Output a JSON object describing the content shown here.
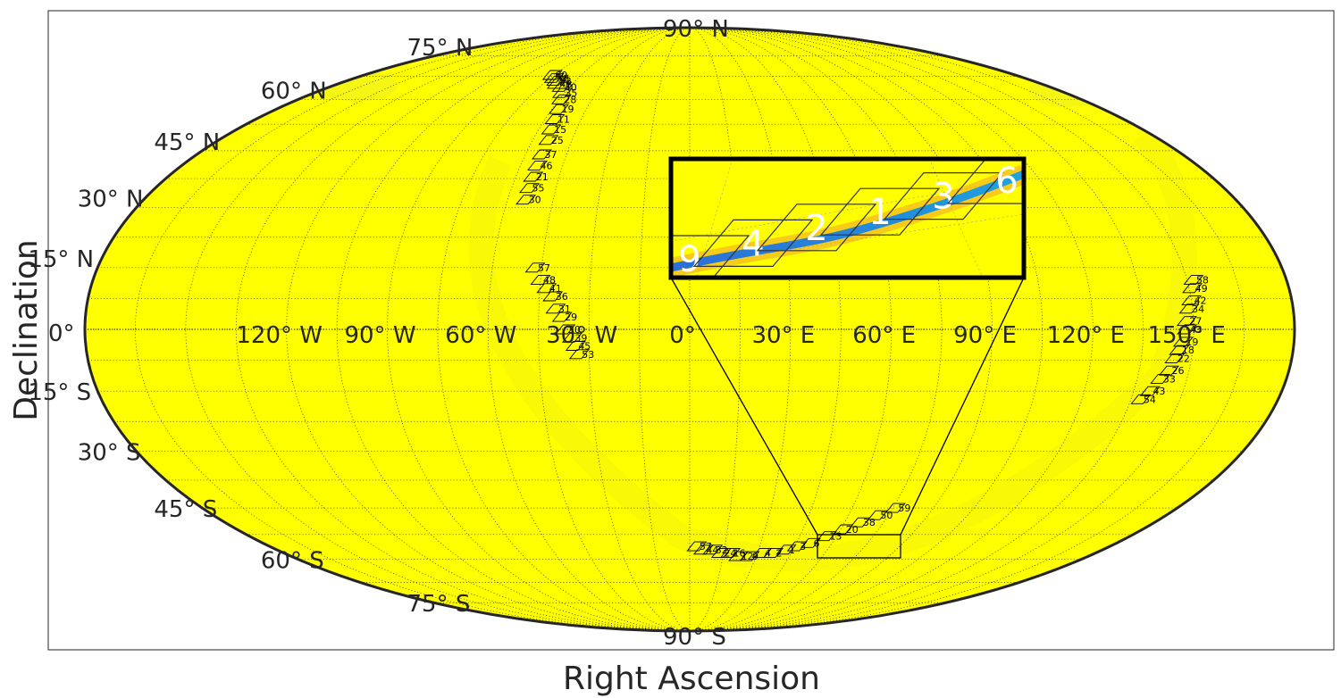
{
  "chart_data": {
    "type": "scatter",
    "projection": "mollweide",
    "title": "",
    "xlabel": "Right Ascension",
    "ylabel": "Declination",
    "grid": true,
    "colors": {
      "background_map": "#ffff00",
      "band": "#f2f20a",
      "tiles": "#000000",
      "track": "#1f7fd0"
    },
    "ra_tick_labels": [
      {
        "ra": -120,
        "label": "120° W"
      },
      {
        "ra": -90,
        "label": "90° W"
      },
      {
        "ra": -60,
        "label": "60° W"
      },
      {
        "ra": -30,
        "label": "30° W"
      },
      {
        "ra": 0,
        "label": "0°"
      },
      {
        "ra": 30,
        "label": "30° E"
      },
      {
        "ra": 60,
        "label": "60° E"
      },
      {
        "ra": 90,
        "label": "90° E"
      },
      {
        "ra": 120,
        "label": "120° E"
      },
      {
        "ra": 150,
        "label": "150° E"
      }
    ],
    "dec_tick_labels": [
      {
        "dec": 90,
        "label": "90° N"
      },
      {
        "dec": 75,
        "label": "75° N"
      },
      {
        "dec": 60,
        "label": "60° N"
      },
      {
        "dec": 45,
        "label": "45° N"
      },
      {
        "dec": 30,
        "label": "30° N"
      },
      {
        "dec": 15,
        "label": "15° N"
      },
      {
        "dec": 0,
        "label": "0°"
      },
      {
        "dec": -15,
        "label": "15° S"
      },
      {
        "dec": -30,
        "label": "30° S"
      },
      {
        "dec": -45,
        "label": "45° S"
      },
      {
        "dec": -60,
        "label": "60° S"
      },
      {
        "dec": -75,
        "label": "75° S"
      },
      {
        "dec": -90,
        "label": "90° S"
      }
    ],
    "tile_groups": [
      {
        "name": "north-arc",
        "tiles": [
          {
            "id": "60",
            "ra": -76,
            "dec": 68
          },
          {
            "id": "58",
            "ra": -73,
            "dec": 67
          },
          {
            "id": "52",
            "ra": -70,
            "dec": 66
          },
          {
            "id": "48",
            "ra": -68,
            "dec": 65
          },
          {
            "id": "40",
            "ra": -64,
            "dec": 64
          },
          {
            "id": "35",
            "ra": -61,
            "dec": 62
          },
          {
            "id": "28",
            "ra": -59,
            "dec": 60
          },
          {
            "id": "19",
            "ra": -57,
            "dec": 57
          },
          {
            "id": "11",
            "ra": -56,
            "dec": 54
          },
          {
            "id": "15",
            "ra": -55,
            "dec": 51
          },
          {
            "id": "25",
            "ra": -54,
            "dec": 48
          },
          {
            "id": "37",
            "ra": -54,
            "dec": 44
          },
          {
            "id": "46",
            "ra": -54,
            "dec": 41
          },
          {
            "id": "21",
            "ra": -54,
            "dec": 38
          },
          {
            "id": "55",
            "ra": -54,
            "dec": 35
          },
          {
            "id": "30",
            "ra": -54,
            "dec": 32
          }
        ]
      },
      {
        "name": "west-arc",
        "tiles": [
          {
            "id": "57",
            "ra": -47,
            "dec": 15
          },
          {
            "id": "48",
            "ra": -45,
            "dec": 12
          },
          {
            "id": "41",
            "ra": -43,
            "dec": 10
          },
          {
            "id": "36",
            "ra": -41,
            "dec": 8
          },
          {
            "id": "31",
            "ra": -40,
            "dec": 5
          },
          {
            "id": "29",
            "ra": -38,
            "dec": 3
          },
          {
            "id": "30",
            "ra": -37,
            "dec": 0
          },
          {
            "id": "39",
            "ra": -35,
            "dec": -2
          },
          {
            "id": "45",
            "ra": -34,
            "dec": -4
          },
          {
            "id": "53",
            "ra": -33,
            "dec": -6
          }
        ]
      },
      {
        "name": "east-arc",
        "tiles": [
          {
            "id": "58",
            "ra": 152,
            "dec": 12
          },
          {
            "id": "49",
            "ra": 151,
            "dec": 10
          },
          {
            "id": "42",
            "ra": 150,
            "dec": 7
          },
          {
            "id": "34",
            "ra": 149,
            "dec": 5
          },
          {
            "id": "27",
            "ra": 148,
            "dec": 2
          },
          {
            "id": "43",
            "ra": 148,
            "dec": 0
          },
          {
            "id": "19",
            "ra": 147,
            "dec": -3
          },
          {
            "id": "18",
            "ra": 146,
            "dec": -5
          },
          {
            "id": "22",
            "ra": 145,
            "dec": -7
          },
          {
            "id": "26",
            "ra": 144,
            "dec": -10
          },
          {
            "id": "33",
            "ra": 142,
            "dec": -12
          },
          {
            "id": "43",
            "ra": 140,
            "dec": -15
          },
          {
            "id": "54",
            "ra": 138,
            "dec": -17
          }
        ]
      },
      {
        "name": "south-arc",
        "tiles": [
          {
            "id": "57",
            "ra": 3,
            "dec": -56
          },
          {
            "id": "44",
            "ra": 6,
            "dec": -57
          },
          {
            "id": "32",
            "ra": 10,
            "dec": -57
          },
          {
            "id": "24",
            "ra": 14,
            "dec": -58
          },
          {
            "id": "16",
            "ra": 18,
            "dec": -58
          },
          {
            "id": "12",
            "ra": 22,
            "dec": -59
          },
          {
            "id": "9",
            "ra": 27,
            "dec": -59
          },
          {
            "id": "4",
            "ra": 32,
            "dec": -58
          },
          {
            "id": "2",
            "ra": 37,
            "dec": -58
          },
          {
            "id": "1",
            "ra": 42,
            "dec": -57
          },
          {
            "id": "3",
            "ra": 46,
            "dec": -56
          },
          {
            "id": "6",
            "ra": 51,
            "dec": -55
          },
          {
            "id": "13",
            "ra": 56,
            "dec": -53
          },
          {
            "id": "20",
            "ra": 61,
            "dec": -51
          },
          {
            "id": "38",
            "ra": 66,
            "dec": -49
          },
          {
            "id": "50",
            "ra": 71,
            "dec": -47
          },
          {
            "id": "59",
            "ra": 76,
            "dec": -45
          }
        ]
      }
    ],
    "inset": {
      "labels": [
        "9",
        "4",
        "2",
        "1",
        "3",
        "6"
      ],
      "zoom_region": {
        "ra_range": [
          28,
          52
        ],
        "dec_range": [
          -60,
          -55
        ]
      }
    }
  }
}
